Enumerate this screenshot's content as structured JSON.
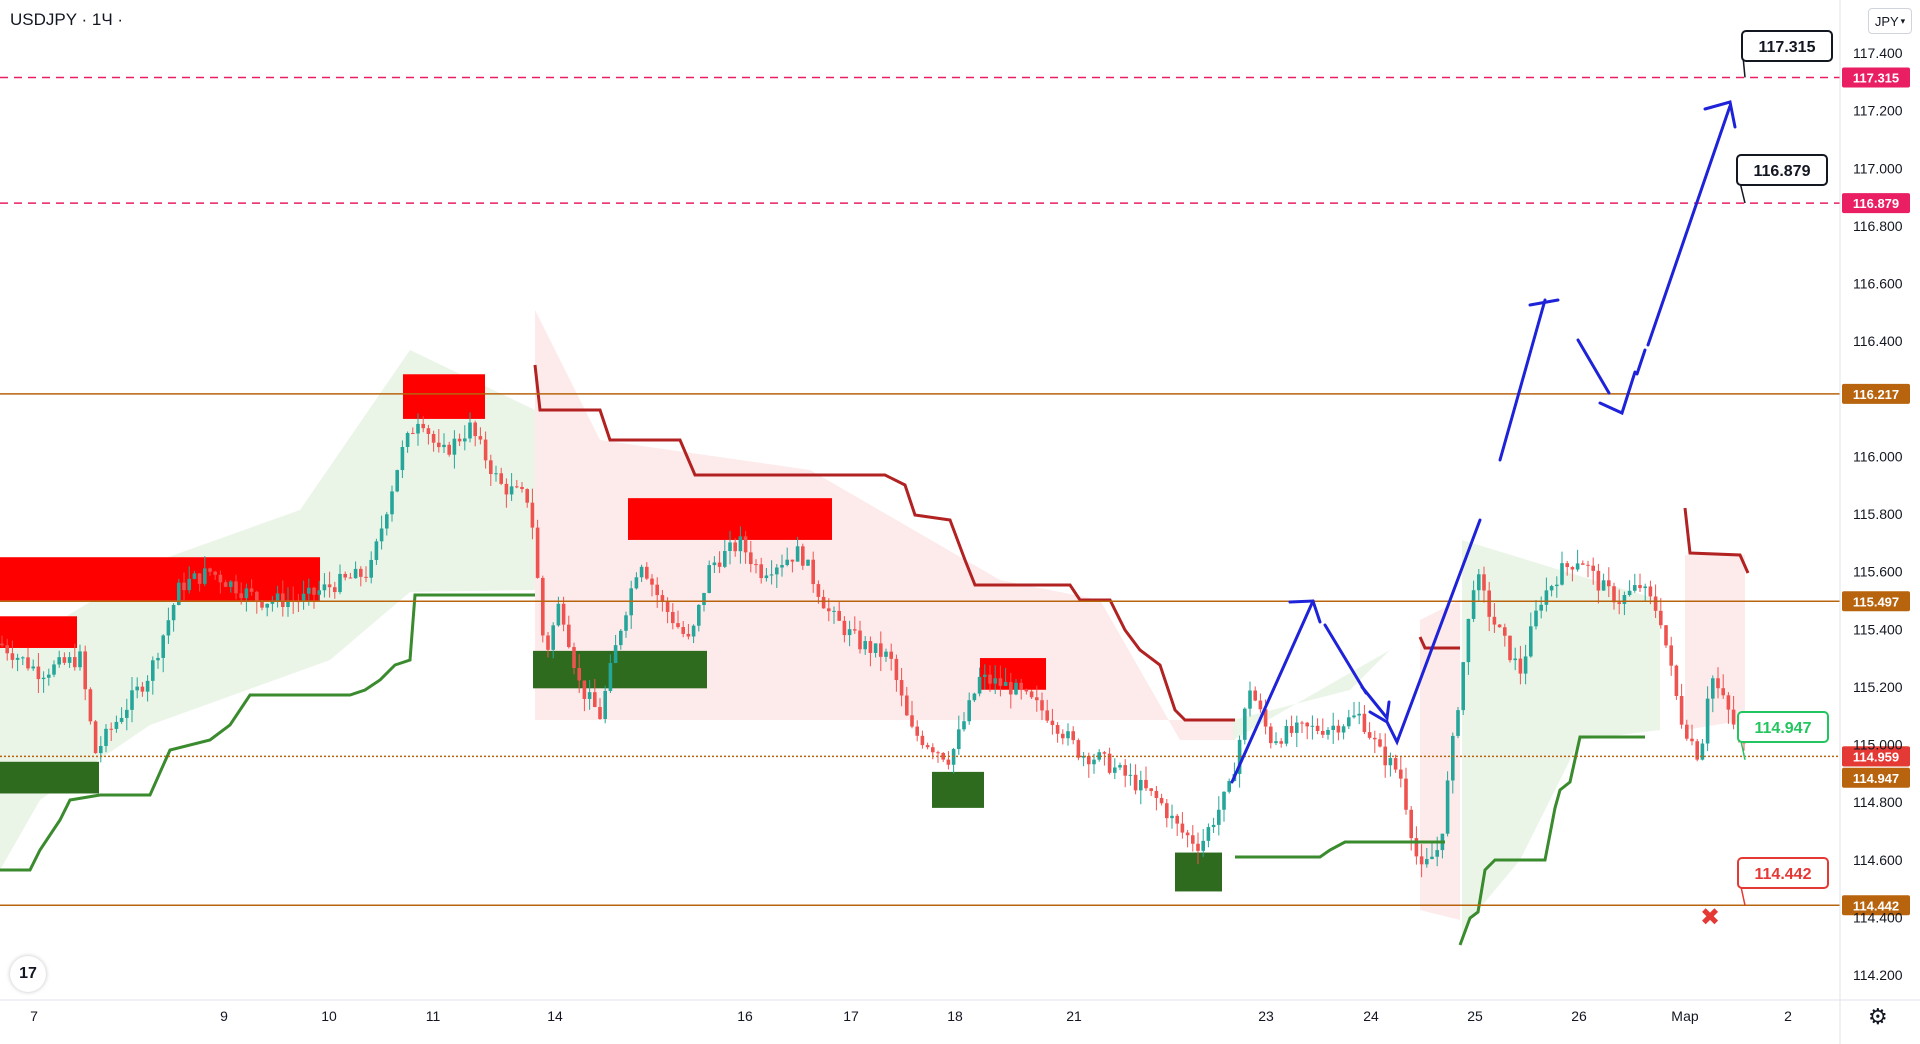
{
  "header": {
    "symbol": "USDJPY · 1Ч ·",
    "currency": "JPY",
    "logo": "17"
  },
  "icons": {
    "settings": "gear-icon",
    "currency_dropdown": "chevron-down-icon"
  },
  "chart_data": {
    "type": "candlestick",
    "y_axis": {
      "ylim": [
        114.1,
        117.55
      ],
      "ticks": [
        "114.200",
        "114.400",
        "114.600",
        "114.800",
        "115.000",
        "115.200",
        "115.400",
        "115.600",
        "115.800",
        "116.000",
        "116.400",
        "116.600",
        "116.800",
        "117.000",
        "117.200",
        "117.400"
      ]
    },
    "x_axis": {
      "ticks": [
        "7",
        "9",
        "10",
        "11",
        "14",
        "16",
        "17",
        "18",
        "21",
        "23",
        "24",
        "25",
        "26",
        "Мар",
        "2"
      ]
    },
    "levels": [
      {
        "value": 117.315,
        "label": "117.315",
        "style": "dashed",
        "color": "#e91e63",
        "tag": "117.315"
      },
      {
        "value": 116.879,
        "label": "116.879",
        "style": "dashed",
        "color": "#e91e63",
        "tag": "116.879"
      },
      {
        "value": 116.217,
        "label": "116.217",
        "style": "solid",
        "color": "#b8640f"
      },
      {
        "value": 115.497,
        "label": "115.497",
        "style": "solid",
        "color": "#b8640f"
      },
      {
        "value": 114.959,
        "label": "114.959",
        "style": "dotted",
        "color": "#b8640f"
      },
      {
        "value": 114.442,
        "label": "114.442",
        "style": "solid",
        "color": "#b8640f",
        "tag": "114.442"
      }
    ],
    "price_labels": [
      {
        "value": 114.947,
        "label": "114.947",
        "color": "#b8640f"
      }
    ],
    "callouts": [
      {
        "text": "114.947",
        "color": "#22c55e"
      }
    ],
    "colors": {
      "up": "#26a69a",
      "down": "#ef5350",
      "supply": "#ff0000",
      "demand": "#2e6b1e",
      "projection": "#1e22d8",
      "trail_red": "#b22222",
      "trail_green": "#3a8a2e"
    }
  }
}
